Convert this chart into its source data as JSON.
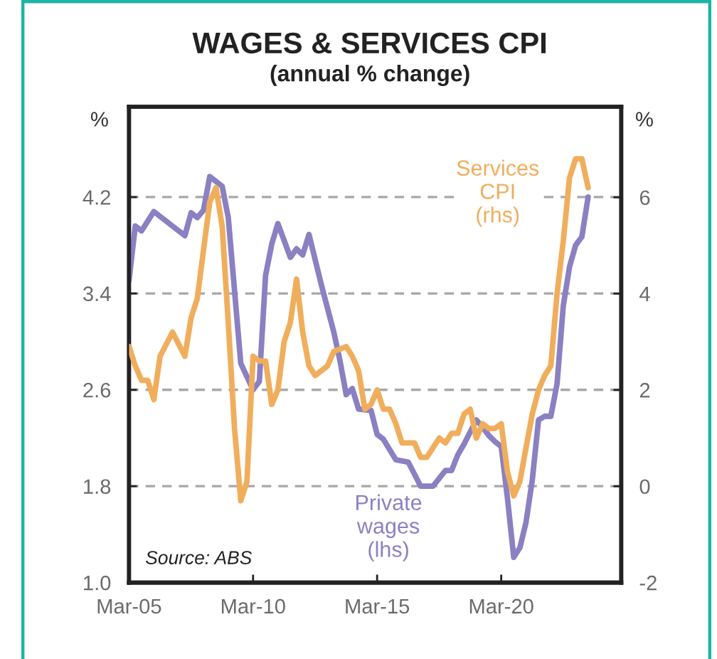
{
  "chart_data": {
    "type": "line",
    "title": "WAGES & SERVICES CPI",
    "subtitle": "(annual % change)",
    "ylabel": "%",
    "y2label": "%",
    "xlim": [
      "2005-03",
      "2025-01"
    ],
    "xticks": [
      {
        "value": "2005-03",
        "label": "Mar-05"
      },
      {
        "value": "2010-03",
        "label": "Mar-10"
      },
      {
        "value": "2015-03",
        "label": "Mar-15"
      },
      {
        "value": "2020-03",
        "label": "Mar-20"
      }
    ],
    "ylim": [
      1,
      4.95
    ],
    "yticks": [
      {
        "value": 1,
        "label": "1.0"
      },
      1.8,
      2.6,
      3.4,
      4.2
    ],
    "y2lim": [
      -2,
      7.88
    ],
    "y2ticks": [
      -2,
      0,
      2,
      4,
      6
    ],
    "grid": "y",
    "line_style": "solid",
    "series": [
      {
        "name": "Private\nwages\n(lhs)",
        "color": "#8a80c2",
        "x": [
          "2005-03",
          "2005-06",
          "2005-09",
          "2006-03",
          "2007-06",
          "2007-09",
          "2007-12",
          "2008-03",
          "2008-06",
          "2008-12",
          "2009-03",
          "2009-09",
          "2010-03",
          "2010-06",
          "2010-09",
          "2010-12",
          "2011-03",
          "2011-09",
          "2011-12",
          "2012-03",
          "2012-06",
          "2012-12",
          "2013-06",
          "2013-09",
          "2013-12",
          "2014-03",
          "2014-06",
          "2014-12",
          "2015-03",
          "2015-06",
          "2015-12",
          "2016-06",
          "2016-12",
          "2017-06",
          "2017-12",
          "2018-03",
          "2018-06",
          "2018-09",
          "2019-03",
          "2019-06",
          "2019-09",
          "2019-12",
          "2020-03",
          "2020-06",
          "2020-09",
          "2020-12",
          "2021-03",
          "2021-06",
          "2021-09",
          "2021-12",
          "2022-03",
          "2022-06",
          "2022-09",
          "2022-12",
          "2023-03",
          "2023-06",
          "2023-09"
        ],
        "values": [
          3.51,
          3.96,
          3.92,
          4.08,
          3.88,
          4.07,
          4.03,
          4.09,
          4.37,
          4.29,
          4.03,
          2.82,
          2.6,
          2.67,
          3.55,
          3.81,
          3.98,
          3.7,
          3.77,
          3.72,
          3.89,
          3.47,
          3.08,
          2.84,
          2.56,
          2.61,
          2.44,
          2.43,
          2.23,
          2.19,
          2.02,
          2.0,
          1.8,
          1.8,
          1.93,
          1.93,
          2.06,
          2.15,
          2.35,
          2.29,
          2.22,
          2.17,
          2.13,
          1.7,
          1.21,
          1.29,
          1.5,
          1.85,
          2.35,
          2.38,
          2.38,
          2.65,
          3.3,
          3.62,
          3.8,
          3.87,
          4.2
        ]
      },
      {
        "name": "Services\nCPI\n(rhs)",
        "color": "#f0ae5c",
        "axis": "y2",
        "x": [
          "2005-03",
          "2005-06",
          "2005-09",
          "2005-12",
          "2006-03",
          "2006-06",
          "2006-12",
          "2007-06",
          "2007-09",
          "2007-12",
          "2008-03",
          "2008-06",
          "2008-09",
          "2008-12",
          "2009-03",
          "2009-06",
          "2009-09",
          "2009-12",
          "2010-03",
          "2010-06",
          "2010-09",
          "2010-12",
          "2011-03",
          "2011-06",
          "2011-09",
          "2011-12",
          "2012-03",
          "2012-06",
          "2012-09",
          "2013-03",
          "2013-06",
          "2013-12",
          "2014-03",
          "2014-06",
          "2014-09",
          "2014-12",
          "2015-03",
          "2015-06",
          "2015-09",
          "2015-12",
          "2016-03",
          "2016-06",
          "2016-09",
          "2016-12",
          "2017-03",
          "2017-06",
          "2017-09",
          "2017-12",
          "2018-03",
          "2018-06",
          "2018-09",
          "2018-12",
          "2019-03",
          "2019-06",
          "2019-09",
          "2019-12",
          "2020-03",
          "2020-06",
          "2020-09",
          "2020-12",
          "2021-03",
          "2021-06",
          "2021-09",
          "2021-12",
          "2022-03",
          "2022-06",
          "2022-09",
          "2022-12",
          "2023-03",
          "2023-06",
          "2023-09"
        ],
        "values": [
          2.9,
          2.5,
          2.2,
          2.2,
          1.8,
          2.7,
          3.2,
          2.7,
          3.5,
          3.9,
          4.9,
          5.9,
          6.2,
          5.4,
          3.4,
          1.2,
          -0.3,
          0.1,
          2.7,
          2.6,
          2.6,
          1.7,
          2.0,
          3.0,
          3.4,
          4.3,
          3.2,
          2.5,
          2.3,
          2.5,
          2.8,
          2.9,
          2.7,
          2.4,
          1.6,
          1.7,
          2.0,
          1.6,
          1.6,
          1.3,
          0.9,
          0.9,
          0.9,
          0.6,
          0.6,
          0.8,
          1.0,
          0.9,
          1.1,
          1.1,
          1.5,
          1.6,
          1.0,
          1.3,
          1.2,
          1.2,
          1.3,
          0.3,
          -0.2,
          0.1,
          0.8,
          1.5,
          2.0,
          2.3,
          2.5,
          4.0,
          5.1,
          6.4,
          6.8,
          6.8,
          6.2
        ]
      }
    ],
    "annotations": [
      "Source: ABS"
    ]
  }
}
